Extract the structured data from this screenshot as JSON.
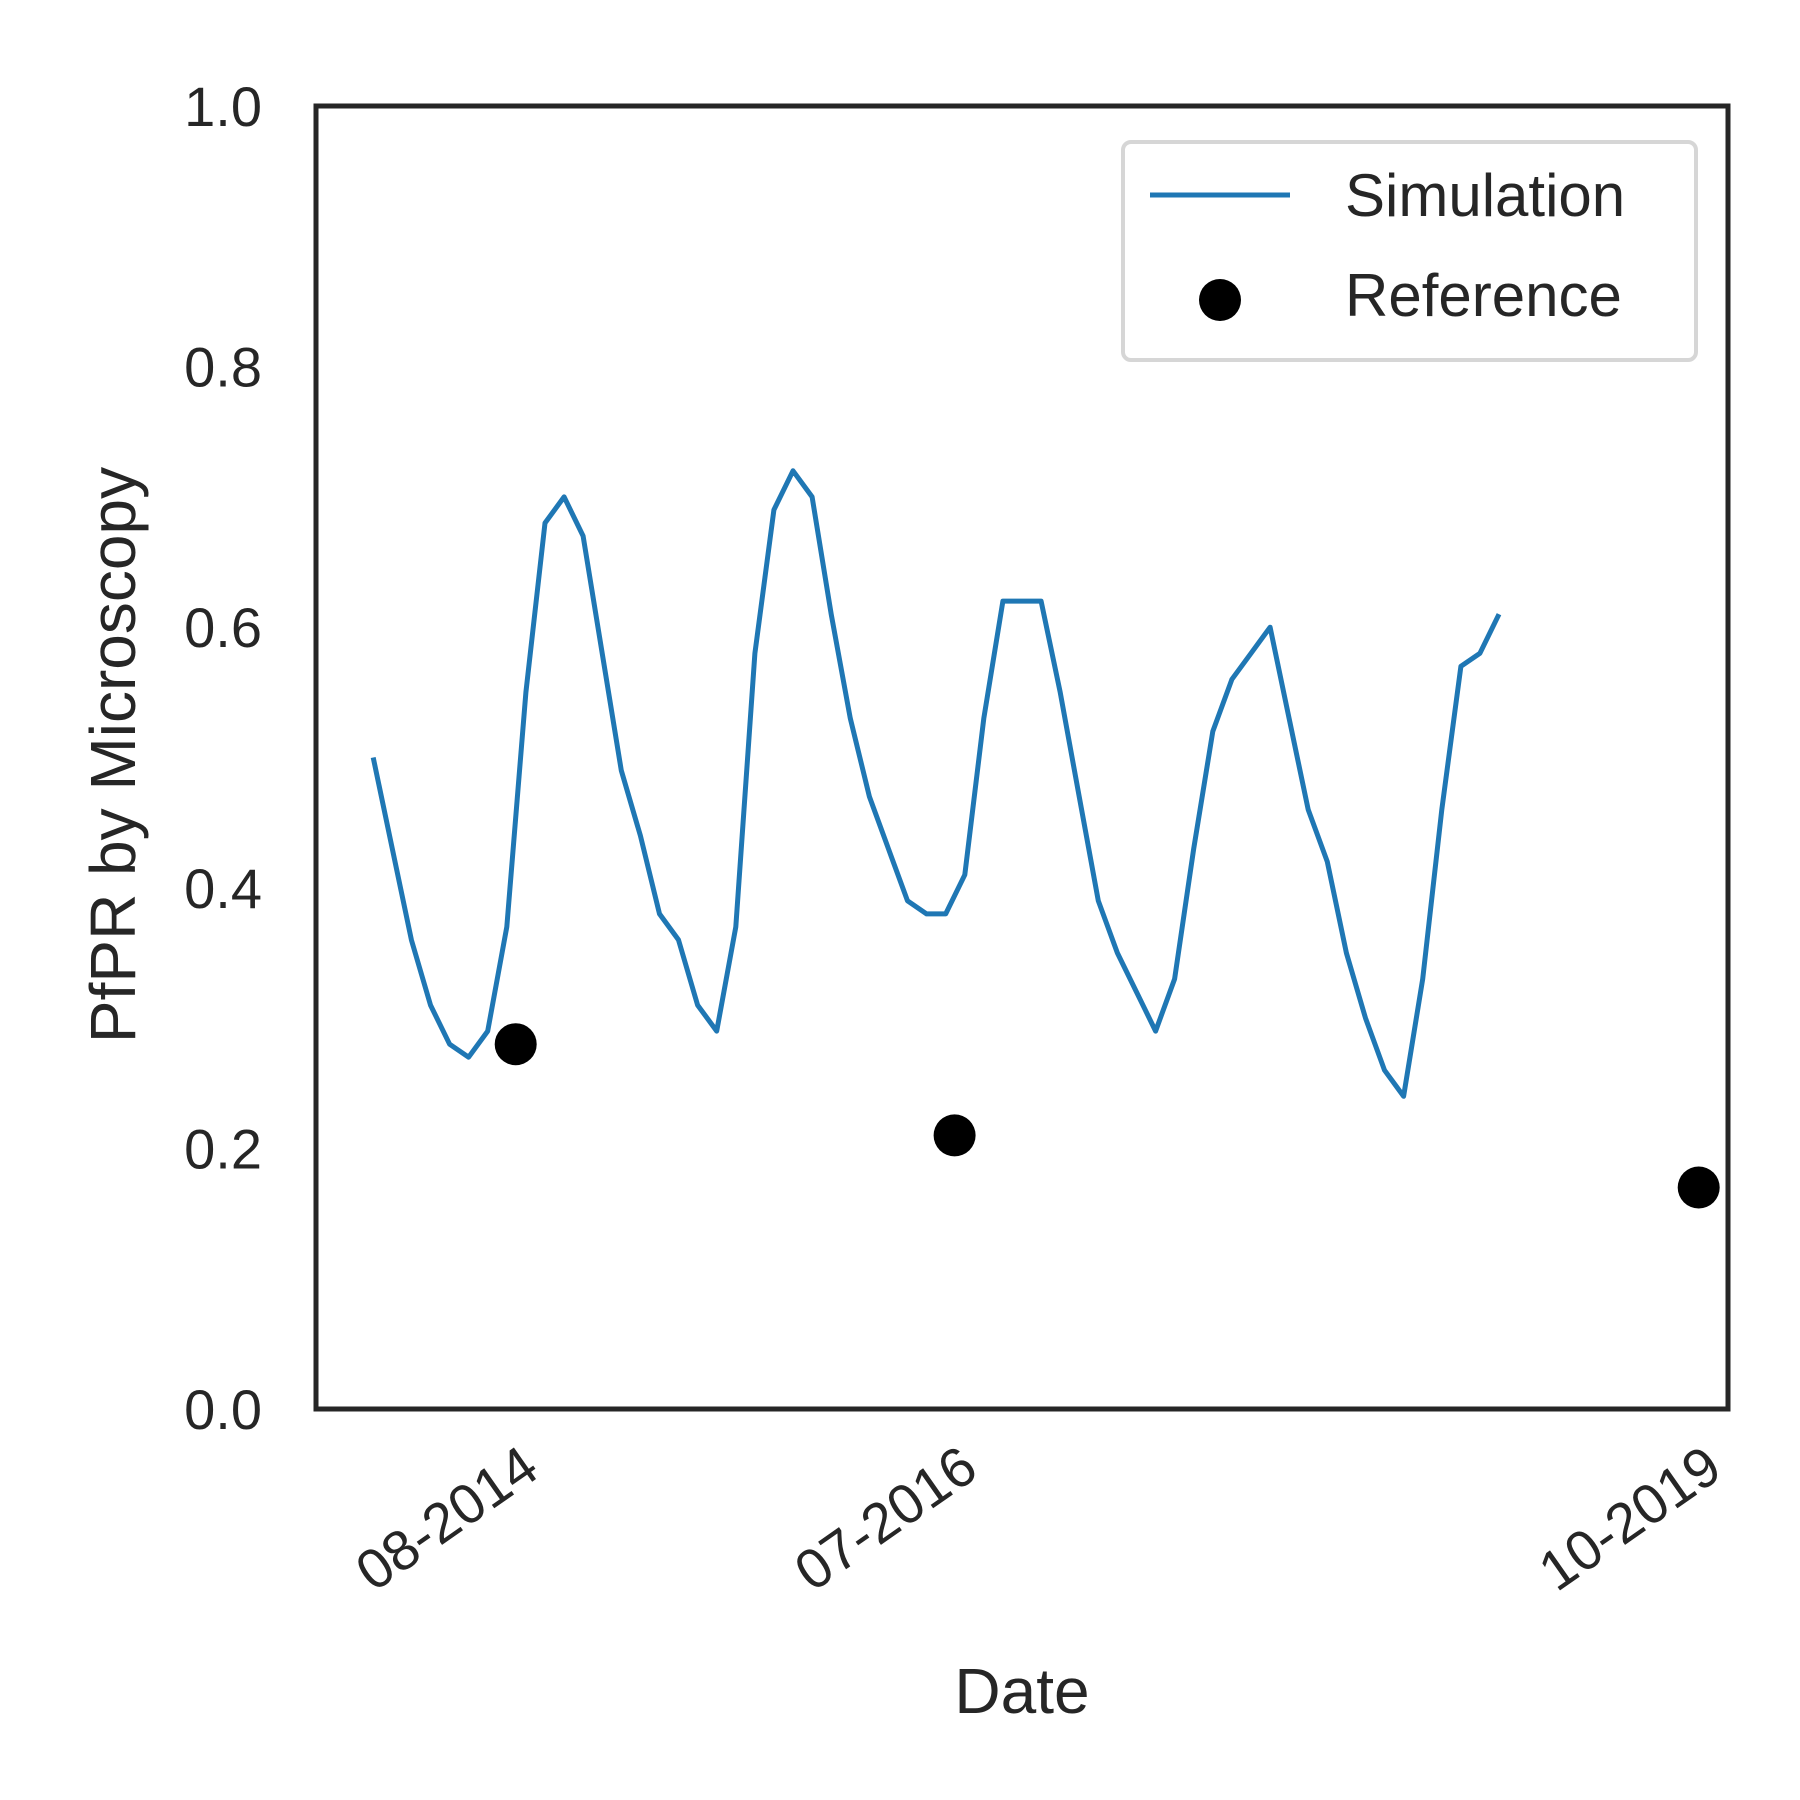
{
  "chart_data": {
    "type": "line",
    "title": "",
    "xlabel": "Date",
    "ylabel": "PfPR by Microscopy",
    "ylim": [
      0.0,
      1.0
    ],
    "y_ticks": [
      "0.0",
      "0.2",
      "0.4",
      "0.6",
      "0.8",
      "1.0"
    ],
    "x_tick_labels": [
      {
        "label": "08-2014",
        "date": "2014-08"
      },
      {
        "label": "07-2016",
        "date": "2016-07"
      },
      {
        "label": "10-2019",
        "date": "2019-10"
      }
    ],
    "xlim": [
      "2013-10",
      "2019-12"
    ],
    "grid": false,
    "legend": "top-right",
    "colors": {
      "simulation": "#1f77b4",
      "reference": "#000000",
      "axes": "#262626"
    },
    "series": [
      {
        "name": "Simulation",
        "kind": "line",
        "x": [
          "2014-01",
          "2014-02",
          "2014-03",
          "2014-04",
          "2014-05",
          "2014-06",
          "2014-07",
          "2014-08",
          "2014-09",
          "2014-10",
          "2014-11",
          "2014-12",
          "2015-01",
          "2015-02",
          "2015-03",
          "2015-04",
          "2015-05",
          "2015-06",
          "2015-07",
          "2015-08",
          "2015-09",
          "2015-10",
          "2015-11",
          "2015-12",
          "2016-01",
          "2016-02",
          "2016-03",
          "2016-04",
          "2016-05",
          "2016-06",
          "2016-07",
          "2016-08",
          "2016-09",
          "2016-10",
          "2016-11",
          "2016-12",
          "2017-01",
          "2017-02",
          "2017-03",
          "2017-04",
          "2017-05",
          "2017-06",
          "2017-07",
          "2017-08",
          "2017-09",
          "2017-10",
          "2017-11",
          "2017-12",
          "2018-01",
          "2018-02",
          "2018-03",
          "2018-04",
          "2018-05",
          "2018-06",
          "2018-07",
          "2018-08",
          "2018-09",
          "2018-10",
          "2018-11",
          "2018-12",
          "2019-01",
          "2019-02",
          "2019-03",
          "2019-04",
          "2019-05",
          "2019-06",
          "2019-07",
          "2019-08"
        ],
        "y": [
          0.5,
          0.43,
          0.36,
          0.31,
          0.28,
          0.27,
          0.29,
          0.37,
          0.55,
          0.68,
          0.7,
          0.67,
          0.58,
          0.49,
          0.44,
          0.38,
          0.36,
          0.31,
          0.29,
          0.37,
          0.58,
          0.69,
          0.72,
          0.7,
          0.61,
          0.53,
          0.47,
          0.43,
          0.39,
          0.38,
          0.38,
          0.41,
          0.53,
          0.62,
          0.62,
          0.62,
          0.55,
          0.47,
          0.39,
          0.35,
          0.32,
          0.29,
          0.33,
          0.43,
          0.52,
          0.56,
          0.58,
          0.6,
          0.53,
          0.46,
          0.42,
          0.35,
          0.3,
          0.26,
          0.24,
          0.33,
          0.46,
          0.57,
          0.58,
          0.61,
          null,
          null,
          null,
          null,
          null,
          null,
          null,
          null
        ]
      },
      {
        "name": "Reference",
        "kind": "scatter",
        "x": [
          "2014-08-15",
          "2016-07-15",
          "2019-10-15"
        ],
        "y": [
          0.28,
          0.21,
          0.17
        ]
      }
    ]
  }
}
